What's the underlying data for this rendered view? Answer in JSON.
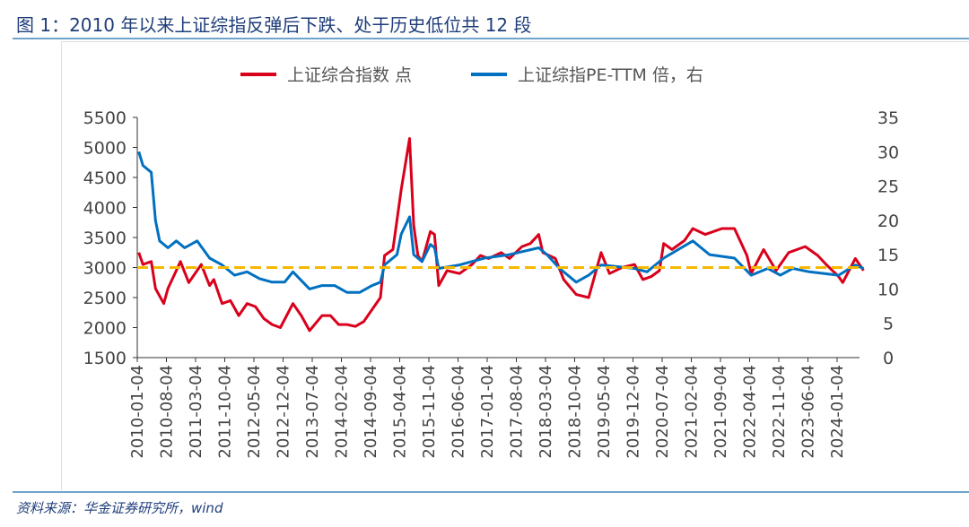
{
  "title": "图 1：2010 年以来上证综指反弹后下跌、处于历史低位共 12 段",
  "source": "资料来源：华金证券研究所，wind",
  "chart_data": {
    "type": "line",
    "title": "",
    "legend_position": "top",
    "grid": false,
    "y_left": {
      "min": 1500,
      "max": 5500,
      "ticks": [
        1500,
        2000,
        2500,
        3000,
        3500,
        4000,
        4500,
        5000,
        5500
      ]
    },
    "y_right": {
      "min": 0,
      "max": 35,
      "ticks": [
        0,
        5,
        10,
        15,
        20,
        25,
        30,
        35
      ]
    },
    "x_ticks": [
      "2010-01-04",
      "2010-08-04",
      "2011-03-04",
      "2011-10-04",
      "2012-05-04",
      "2012-12-04",
      "2013-07-04",
      "2014-02-04",
      "2014-09-04",
      "2015-04-04",
      "2015-11-04",
      "2016-06-04",
      "2017-01-04",
      "2017-08-04",
      "2018-03-04",
      "2018-10-04",
      "2019-05-04",
      "2019-12-04",
      "2020-07-04",
      "2021-02-04",
      "2021-09-04",
      "2022-04-04",
      "2022-11-04",
      "2023-06-04",
      "2024-01-04"
    ],
    "reference_line": {
      "axis": "left",
      "value": 3000,
      "color": "#f5b800",
      "style": "dashed"
    },
    "series": [
      {
        "name": "上证综合指数 点",
        "axis": "left",
        "color": "#d9001b",
        "points": [
          [
            "2010-01",
            3250
          ],
          [
            "2010-02",
            3050
          ],
          [
            "2010-04",
            3100
          ],
          [
            "2010-05",
            2650
          ],
          [
            "2010-07",
            2400
          ],
          [
            "2010-08",
            2650
          ],
          [
            "2010-10",
            2950
          ],
          [
            "2010-11",
            3100
          ],
          [
            "2011-01",
            2750
          ],
          [
            "2011-03",
            2950
          ],
          [
            "2011-04",
            3050
          ],
          [
            "2011-06",
            2700
          ],
          [
            "2011-07",
            2800
          ],
          [
            "2011-09",
            2400
          ],
          [
            "2011-11",
            2450
          ],
          [
            "2012-01",
            2200
          ],
          [
            "2012-03",
            2400
          ],
          [
            "2012-05",
            2350
          ],
          [
            "2012-07",
            2150
          ],
          [
            "2012-09",
            2050
          ],
          [
            "2012-11",
            2000
          ],
          [
            "2013-02",
            2400
          ],
          [
            "2013-04",
            2200
          ],
          [
            "2013-06",
            1950
          ],
          [
            "2013-09",
            2200
          ],
          [
            "2013-11",
            2200
          ],
          [
            "2014-01",
            2050
          ],
          [
            "2014-03",
            2050
          ],
          [
            "2014-05",
            2020
          ],
          [
            "2014-07",
            2100
          ],
          [
            "2014-09",
            2300
          ],
          [
            "2014-11",
            2500
          ],
          [
            "2014-12",
            3200
          ],
          [
            "2015-02",
            3300
          ],
          [
            "2015-04",
            4300
          ],
          [
            "2015-06",
            5150
          ],
          [
            "2015-07",
            3700
          ],
          [
            "2015-08",
            3200
          ],
          [
            "2015-09",
            3100
          ],
          [
            "2015-11",
            3600
          ],
          [
            "2015-12",
            3550
          ],
          [
            "2016-01",
            2700
          ],
          [
            "2016-03",
            2950
          ],
          [
            "2016-06",
            2900
          ],
          [
            "2016-09",
            3050
          ],
          [
            "2016-11",
            3200
          ],
          [
            "2017-01",
            3150
          ],
          [
            "2017-04",
            3250
          ],
          [
            "2017-06",
            3150
          ],
          [
            "2017-09",
            3350
          ],
          [
            "2017-11",
            3400
          ],
          [
            "2018-01",
            3550
          ],
          [
            "2018-02",
            3250
          ],
          [
            "2018-05",
            3150
          ],
          [
            "2018-07",
            2800
          ],
          [
            "2018-10",
            2550
          ],
          [
            "2019-01",
            2500
          ],
          [
            "2019-04",
            3250
          ],
          [
            "2019-06",
            2900
          ],
          [
            "2019-09",
            3000
          ],
          [
            "2019-12",
            3050
          ],
          [
            "2020-02",
            2800
          ],
          [
            "2020-04",
            2850
          ],
          [
            "2020-06",
            2950
          ],
          [
            "2020-07",
            3400
          ],
          [
            "2020-09",
            3300
          ],
          [
            "2020-12",
            3450
          ],
          [
            "2021-02",
            3650
          ],
          [
            "2021-05",
            3550
          ],
          [
            "2021-09",
            3650
          ],
          [
            "2021-12",
            3650
          ],
          [
            "2022-03",
            3200
          ],
          [
            "2022-04",
            2900
          ],
          [
            "2022-07",
            3300
          ],
          [
            "2022-10",
            2950
          ],
          [
            "2023-01",
            3250
          ],
          [
            "2023-05",
            3350
          ],
          [
            "2023-08",
            3200
          ],
          [
            "2023-10",
            3050
          ],
          [
            "2024-01",
            2850
          ],
          [
            "2024-02",
            2750
          ],
          [
            "2024-05",
            3150
          ],
          [
            "2024-07",
            2950
          ]
        ]
      },
      {
        "name": "上证综指PE-TTM 倍，右",
        "axis": "right",
        "color": "#0070c0",
        "points": [
          [
            "2010-01",
            30
          ],
          [
            "2010-02",
            28
          ],
          [
            "2010-04",
            27
          ],
          [
            "2010-05",
            20
          ],
          [
            "2010-06",
            17
          ],
          [
            "2010-08",
            16
          ],
          [
            "2010-10",
            17
          ],
          [
            "2010-12",
            16
          ],
          [
            "2011-03",
            17
          ],
          [
            "2011-06",
            14.5
          ],
          [
            "2011-09",
            13.5
          ],
          [
            "2011-12",
            12
          ],
          [
            "2012-03",
            12.5
          ],
          [
            "2012-06",
            11.5
          ],
          [
            "2012-09",
            11
          ],
          [
            "2012-12",
            11
          ],
          [
            "2013-02",
            12.5
          ],
          [
            "2013-06",
            10
          ],
          [
            "2013-09",
            10.5
          ],
          [
            "2013-12",
            10.5
          ],
          [
            "2014-03",
            9.5
          ],
          [
            "2014-06",
            9.5
          ],
          [
            "2014-09",
            10.5
          ],
          [
            "2014-11",
            11
          ],
          [
            "2014-12",
            13.5
          ],
          [
            "2015-03",
            15
          ],
          [
            "2015-04",
            18
          ],
          [
            "2015-06",
            20.5
          ],
          [
            "2015-07",
            15
          ],
          [
            "2015-09",
            14
          ],
          [
            "2015-11",
            16.5
          ],
          [
            "2015-12",
            16
          ],
          [
            "2016-01",
            13
          ],
          [
            "2016-06",
            13.5
          ],
          [
            "2016-12",
            14.5
          ],
          [
            "2017-06",
            15
          ],
          [
            "2018-01",
            16
          ],
          [
            "2018-03",
            15
          ],
          [
            "2018-06",
            13
          ],
          [
            "2018-10",
            11
          ],
          [
            "2019-01",
            12
          ],
          [
            "2019-04",
            13.5
          ],
          [
            "2019-12",
            13
          ],
          [
            "2020-03",
            12.5
          ],
          [
            "2020-07",
            14.5
          ],
          [
            "2021-02",
            17
          ],
          [
            "2021-06",
            15
          ],
          [
            "2021-12",
            14.5
          ],
          [
            "2022-04",
            12
          ],
          [
            "2022-08",
            13
          ],
          [
            "2022-11",
            12
          ],
          [
            "2023-02",
            13
          ],
          [
            "2023-06",
            12.5
          ],
          [
            "2024-01",
            12
          ],
          [
            "2024-05",
            13.5
          ],
          [
            "2024-07",
            13
          ]
        ]
      }
    ]
  }
}
